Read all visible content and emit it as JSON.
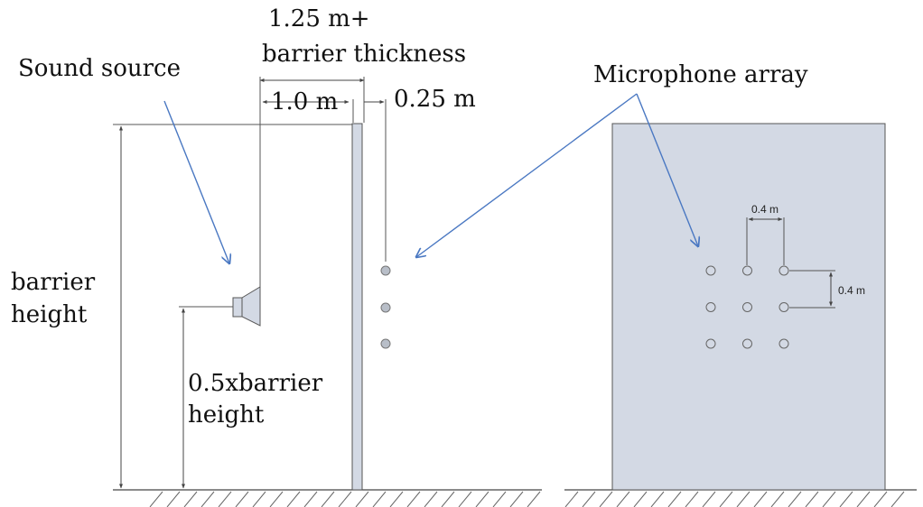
{
  "labels": {
    "sound_source": "Sound source",
    "total_distance_line1": "1.25 m+",
    "total_distance_line2": "barrier thickness",
    "source_distance": "1.0 m",
    "mic_distance": "0.25 m",
    "microphone_array": "Microphone array",
    "barrier_height_line1": "barrier",
    "barrier_height_line2": "height",
    "source_height_line1": "0.5xbarrier",
    "source_height_line2": "height",
    "spacing_horizontal": "0.4 m",
    "spacing_vertical": "0.4 m"
  },
  "colors": {
    "barrier_fill": "#d3d9e4",
    "microphone_fill": "#b8bec8",
    "arrow": "#4a78c2",
    "line": "#444444"
  },
  "icons": {
    "source": "loudspeaker-icon",
    "microphone": "microphone-circle-icon",
    "ground": "hatched-ground-icon"
  },
  "microphone_grid": {
    "rows": 3,
    "columns": 3
  }
}
